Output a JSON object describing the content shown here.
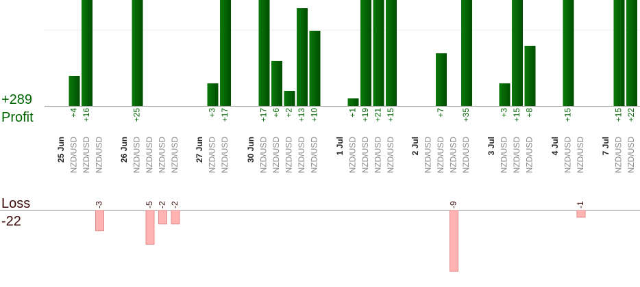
{
  "profit_total": "+289",
  "profit_label": "Profit",
  "loss_label": "Loss",
  "loss_total": "-22",
  "days": [
    {
      "date": "25 Jun",
      "trades": [
        {
          "pair": "NZD/USD",
          "pnl": 4,
          "pnl_label": "+4"
        },
        {
          "pair": "NZD/USD",
          "pnl": 16,
          "pnl_label": "+16"
        },
        {
          "pair": "NZD/USD",
          "pnl": -3
        }
      ]
    },
    {
      "date": "26 Jun",
      "trades": [
        {
          "pair": "NZD/USD",
          "pnl": 25,
          "pnl_label": "+25"
        },
        {
          "pair": "NZD/USD",
          "pnl": -5
        },
        {
          "pair": "NZD/USD",
          "pnl": -2
        },
        {
          "pair": "NZD/USD",
          "pnl": -2
        }
      ]
    },
    {
      "date": "27 Jun",
      "trades": [
        {
          "pair": "NZD/USD",
          "pnl": 3,
          "pnl_label": "+3"
        },
        {
          "pair": "NZD/USD",
          "pnl": 17,
          "pnl_label": "+17"
        }
      ]
    },
    {
      "date": "30 Jun",
      "trades": [
        {
          "pair": "NZD/USD",
          "pnl": 17,
          "pnl_label": "+17"
        },
        {
          "pair": "NZD/USD",
          "pnl": 6,
          "pnl_label": "+6"
        },
        {
          "pair": "NZD/USD",
          "pnl": 2,
          "pnl_label": "+2"
        },
        {
          "pair": "NZD/USD",
          "pnl": 13,
          "pnl_label": "+13"
        },
        {
          "pair": "NZD/USD",
          "pnl": 10,
          "pnl_label": "+10"
        }
      ]
    },
    {
      "date": "1 Jul",
      "trades": [
        {
          "pair": "NZD/USD",
          "pnl": 1,
          "pnl_label": "+1"
        },
        {
          "pair": "NZD/USD",
          "pnl": 19,
          "pnl_label": "+19"
        },
        {
          "pair": "NZD/USD",
          "pnl": 21,
          "pnl_label": "+21"
        },
        {
          "pair": "NZD/USD",
          "pnl": 15,
          "pnl_label": "+15"
        }
      ]
    },
    {
      "date": "2 Jul",
      "trades": [
        {
          "pair": "NZD/USD",
          "pnl": null
        },
        {
          "pair": "NZD/USD",
          "pnl": 7,
          "pnl_label": "+7"
        },
        {
          "pair": "NZD/USD",
          "pnl": -9
        },
        {
          "pair": "NZD/USD",
          "pnl": 35,
          "pnl_label": "+35"
        }
      ]
    },
    {
      "date": "3 Jul",
      "trades": [
        {
          "pair": "NZD/USD",
          "pnl": 3,
          "pnl_label": "+3"
        },
        {
          "pair": "NZD/USD",
          "pnl": 15,
          "pnl_label": "+15"
        },
        {
          "pair": "NZD/USD",
          "pnl": 8,
          "pnl_label": "+8"
        }
      ]
    },
    {
      "date": "4 Jul",
      "trades": [
        {
          "pair": "NZD/USD",
          "pnl": 15,
          "pnl_label": "+15"
        },
        {
          "pair": "NZD/USD",
          "pnl": -1
        }
      ]
    },
    {
      "date": "7 Jul",
      "trades": [
        {
          "pair": "NZD/USD",
          "pnl": 15,
          "pnl_label": "+15"
        },
        {
          "pair": "NZD/USD",
          "pnl": 22,
          "pnl_label": "+22"
        }
      ]
    }
  ]
}
